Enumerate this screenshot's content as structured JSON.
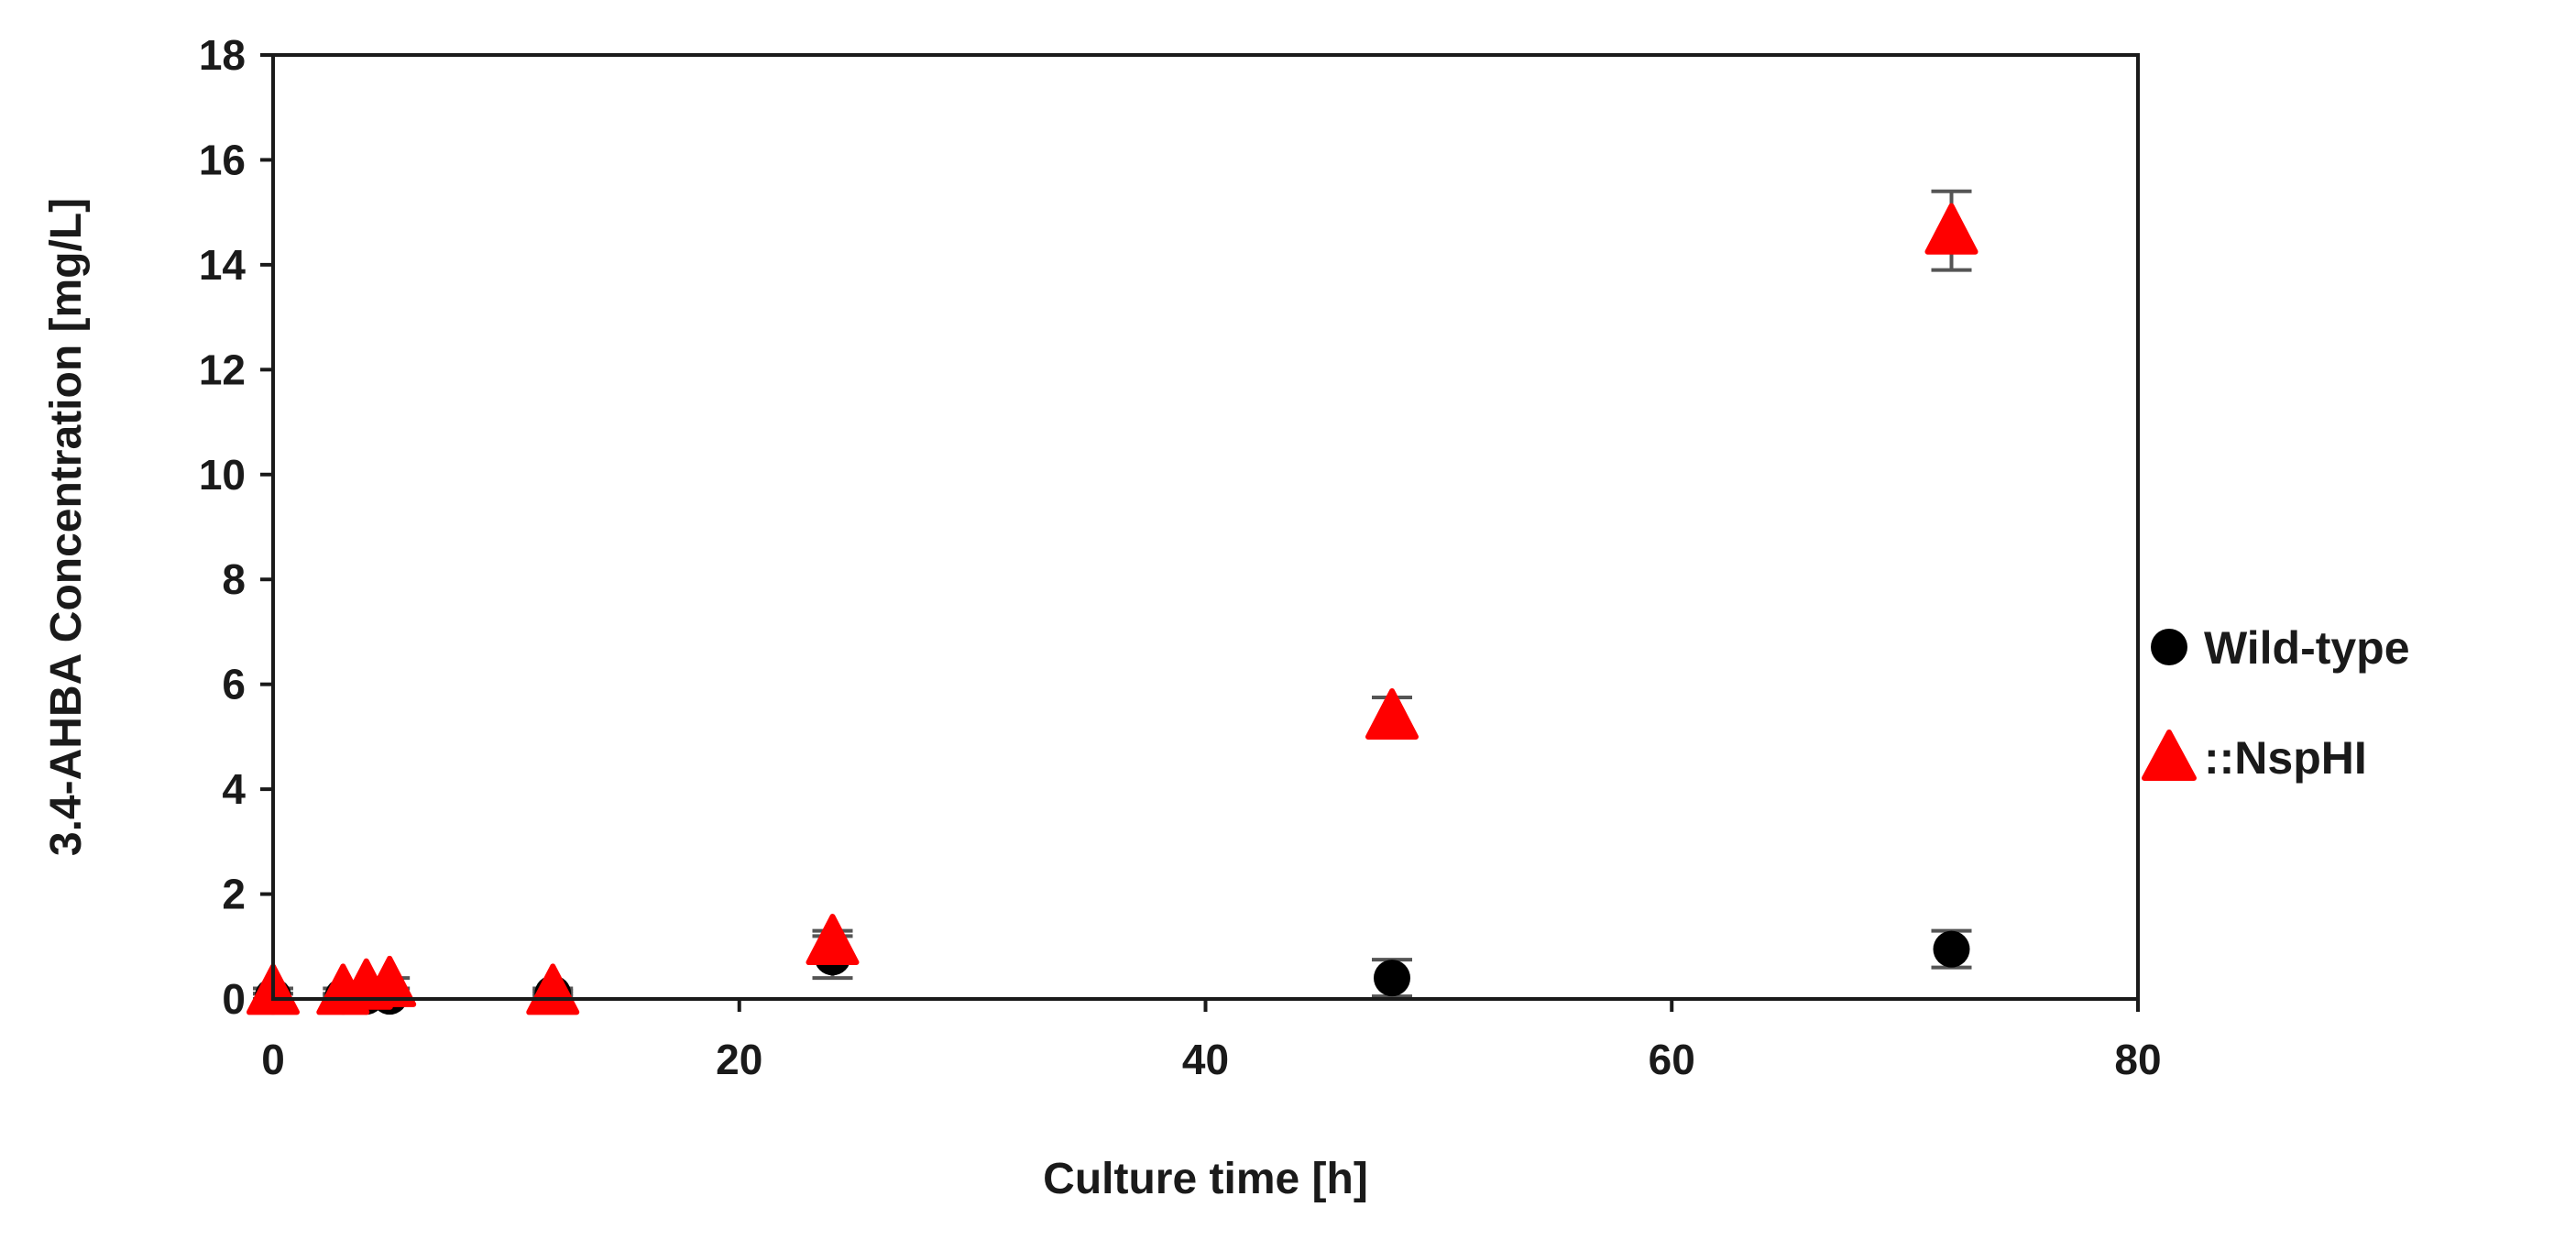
{
  "chart_data": {
    "type": "scatter",
    "xlabel": "Culture time [h]",
    "ylabel": "3.4-AHBA Concentration [mg/L]",
    "xlim": [
      0,
      80
    ],
    "ylim": [
      0,
      18
    ],
    "xticks": [
      "0",
      "20",
      "40",
      "60",
      "80"
    ],
    "yticks": [
      "0",
      "2",
      "4",
      "6",
      "8",
      "10",
      "12",
      "14",
      "16",
      "18"
    ],
    "grid": false,
    "legend_position": "right",
    "series": [
      {
        "name": "Wild-type",
        "marker": "circle",
        "color": "#000000",
        "points": [
          {
            "x": 0,
            "y": 0.05,
            "err": 0.05
          },
          {
            "x": 3,
            "y": 0.05,
            "err": 0.03
          },
          {
            "x": 4,
            "y": 0.05,
            "err": 0.03
          },
          {
            "x": 5,
            "y": 0.05,
            "err": 0.03
          },
          {
            "x": 12,
            "y": 0.1,
            "err": 0.05
          },
          {
            "x": 24,
            "y": 0.8,
            "err": 0.4
          },
          {
            "x": 48,
            "y": 0.4,
            "err": 0.35
          },
          {
            "x": 72,
            "y": 0.95,
            "err": 0.35
          }
        ]
      },
      {
        "name": "::NspHI",
        "marker": "triangle",
        "color": "#ff0000",
        "points": [
          {
            "x": 0,
            "y": 0.15,
            "err": 0.05
          },
          {
            "x": 3,
            "y": 0.15,
            "err": 0.05
          },
          {
            "x": 4,
            "y": 0.25,
            "err": 0.05
          },
          {
            "x": 5,
            "y": 0.3,
            "err": 0.1
          },
          {
            "x": 12,
            "y": 0.15,
            "err": 0.05
          },
          {
            "x": 24,
            "y": 1.1,
            "err": 0.2
          },
          {
            "x": 48,
            "y": 5.4,
            "err": 0.35
          },
          {
            "x": 72,
            "y": 14.65,
            "err": 0.75
          }
        ]
      }
    ]
  }
}
